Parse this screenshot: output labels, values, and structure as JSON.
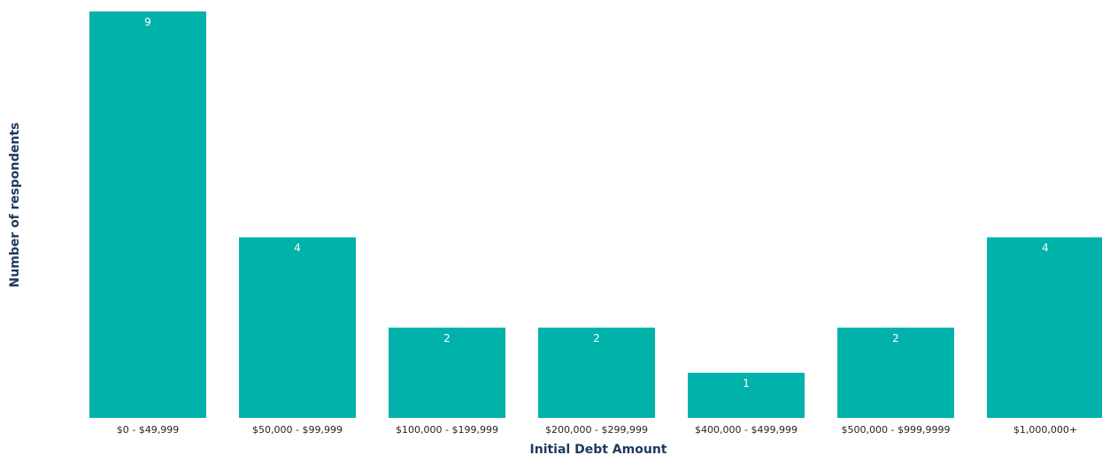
{
  "chart_data": {
    "type": "bar",
    "title": "",
    "xlabel": "Initial Debt Amount",
    "ylabel": "Number of respondents",
    "categories": [
      "$0 - $49,999",
      "$50,000 - $99,999",
      "$100,000 - $199,999",
      "$200,000 - $299,999",
      "$400,000 - $499,999",
      "$500,000 - $999,9999",
      "$1,000,000+"
    ],
    "values": [
      9,
      4,
      2,
      2,
      1,
      2,
      4
    ],
    "ylim": [
      0,
      9
    ],
    "grid": false,
    "legend": "none",
    "data_labels": true,
    "colors": {
      "bar": "#01B2AA",
      "bar_label": "#FFFFFF",
      "tick_label": "#252423",
      "axis_title": "#1E3A5F"
    }
  }
}
